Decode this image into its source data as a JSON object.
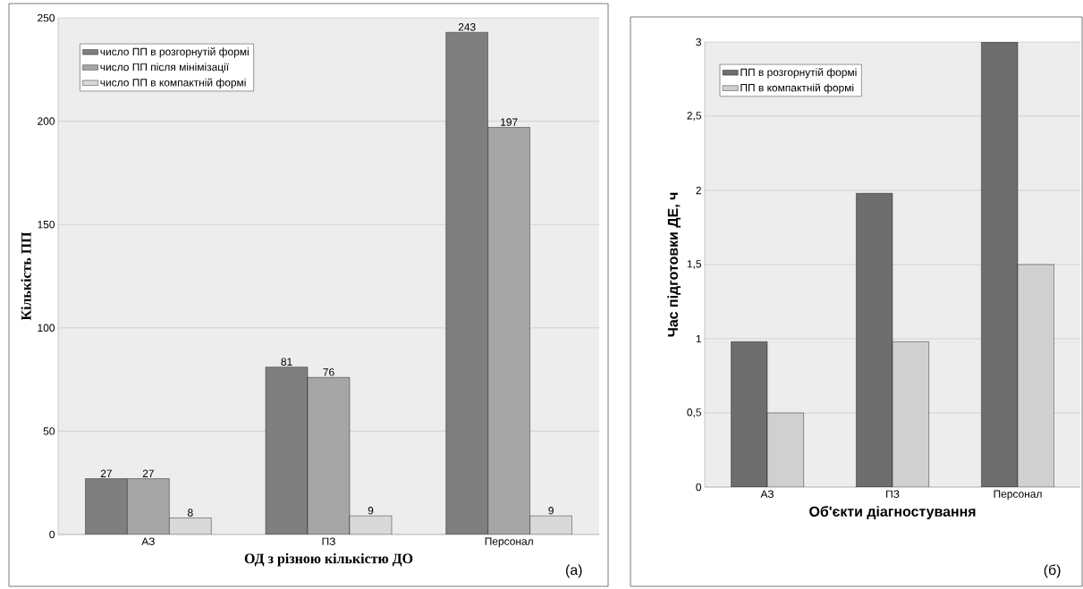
{
  "chart_data": [
    {
      "type": "bar",
      "categories": [
        "АЗ",
        "ПЗ",
        "Персонал"
      ],
      "xlabel": "ОД з різною кількістю ДО",
      "ylabel": "Кількість ПП",
      "series": [
        {
          "name": "число ПП в розгорнутій формі",
          "color": "#7f7f7f",
          "values": [
            27,
            81,
            243
          ]
        },
        {
          "name": "число ПП після мінімізації",
          "color": "#a6a6a6",
          "values": [
            27,
            76,
            197
          ]
        },
        {
          "name": "число ПП в компактній формі",
          "color": "#d9d9d9",
          "values": [
            8,
            9,
            9
          ]
        }
      ],
      "ylim": [
        0,
        250
      ],
      "yticks": [
        0,
        50,
        100,
        150,
        200,
        250
      ],
      "grid": "y",
      "legend": "top left",
      "data_labels": true,
      "annotations": [
        "(а)"
      ]
    },
    {
      "type": "bar",
      "categories": [
        "АЗ",
        "ПЗ",
        "Персонал"
      ],
      "xlabel": "Об'єкти діагностування",
      "ylabel": "Час підготовки ДЕ, ч",
      "series": [
        {
          "name": "ПП в розгорнутій формі",
          "color": "#6e6e6e",
          "values": [
            0.98,
            1.98,
            3
          ]
        },
        {
          "name": "ПП в компактній формі",
          "color": "#d0d0d0",
          "values": [
            0.5,
            0.98,
            1.5
          ]
        }
      ],
      "ylim": [
        0,
        3
      ],
      "yticks": [
        0,
        {
          "value": 0.5,
          "label": "0,5"
        },
        1,
        {
          "value": 1.5,
          "label": "1,5"
        },
        2,
        {
          "value": 2.5,
          "label": "2,5"
        },
        3
      ],
      "grid": "y",
      "legend": "top left",
      "annotations": [
        "(б)"
      ]
    }
  ]
}
